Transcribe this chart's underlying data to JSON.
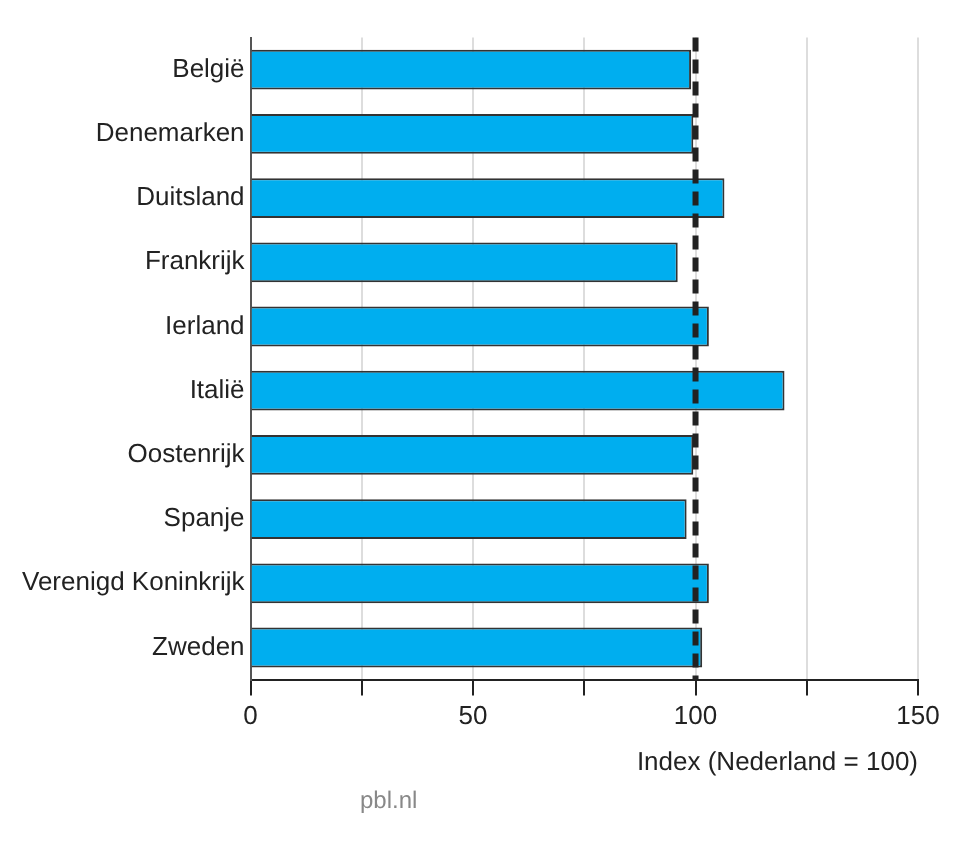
{
  "chart_data": {
    "type": "bar",
    "orientation": "horizontal",
    "categories": [
      "België",
      "Denemarken",
      "Duitsland",
      "Frankrijk",
      "Ierland",
      "Italië",
      "Oostenrijk",
      "Spanje",
      "Verenigd Koninkrijk",
      "Zweden"
    ],
    "values": [
      99,
      99.5,
      106.5,
      96,
      103,
      120,
      99.5,
      98,
      103,
      101.5
    ],
    "color": "#00aeef",
    "xlim": [
      0,
      150
    ],
    "xticks": [
      0,
      {
        "value": 25,
        "label": null
      },
      50,
      {
        "value": 75,
        "label": null
      },
      100,
      {
        "value": 125,
        "label": null
      },
      150
    ],
    "xlabel": "Index (Nederland = 100)",
    "grid": "x",
    "legend": false,
    "ref_lines": [
      {
        "axis": "x",
        "value": 100,
        "color": "#222222",
        "line_style": "dashed"
      }
    ],
    "annotations": [
      "pbl.nl"
    ]
  }
}
